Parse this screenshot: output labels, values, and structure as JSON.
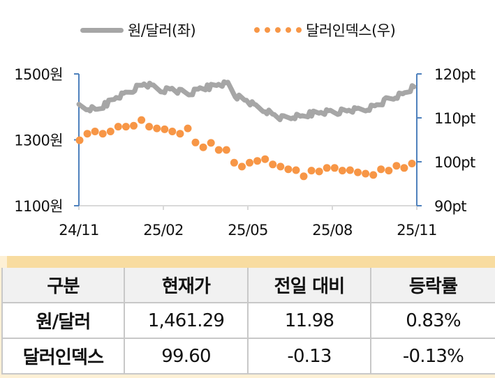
{
  "legend": {
    "series1_label": "원/달러(좌)",
    "series2_label": "달러인덱스(우)"
  },
  "axes": {
    "left_ticks": [
      "1500원",
      "1300원",
      "1100원"
    ],
    "right_ticks": [
      "120pt",
      "110pt",
      "100pt",
      "90pt"
    ],
    "x_ticks": [
      "24/11",
      "25/02",
      "25/05",
      "25/08",
      "25/11"
    ]
  },
  "colors": {
    "krw_usd_line": "#a6a6a6",
    "dollar_index_dots": "#f79646",
    "axis": "#4f81bd",
    "x_axis": "#d9d9d9",
    "table_header_bg": "#f1f1f1",
    "table_topbar": "#f8dca0",
    "table_side": "#fdf0d5"
  },
  "table": {
    "headers": [
      "구분",
      "현재가",
      "전일 대비",
      "등락률"
    ],
    "rows": [
      [
        "원/달러",
        "1,461.29",
        "11.98",
        "0.83%"
      ],
      [
        "달러인덱스",
        "99.60",
        "-0.13",
        "-0.13%"
      ]
    ]
  },
  "chart_data": {
    "type": "line",
    "title": "",
    "xlabel": "",
    "ylabel": "원/달러 (좌), 달러인덱스 (우)",
    "x_ticks": [
      "24/11",
      "25/02",
      "25/05",
      "25/08",
      "25/11"
    ],
    "grid": false,
    "legend_position": "top",
    "y_left": {
      "label": "원/달러",
      "range": [
        1100,
        1500
      ],
      "ticks": [
        1100,
        1300,
        1500
      ],
      "unit": "원"
    },
    "y_right": {
      "label": "달러인덱스",
      "range": [
        90,
        120
      ],
      "ticks": [
        90,
        100,
        110,
        120
      ],
      "unit": "pt"
    },
    "series": [
      {
        "name": "원/달러(좌)",
        "axis": "left",
        "style": "line",
        "x": [
          "24/11",
          "24/11",
          "24/12",
          "24/12",
          "24/12",
          "25/01",
          "25/01",
          "25/01",
          "25/02",
          "25/02",
          "25/02",
          "25/03",
          "25/03",
          "25/03",
          "25/04",
          "25/04",
          "25/04",
          "25/05",
          "25/05",
          "25/05",
          "25/06",
          "25/06",
          "25/06",
          "25/07",
          "25/07",
          "25/07",
          "25/08",
          "25/08",
          "25/08",
          "25/09",
          "25/09",
          "25/09",
          "25/10",
          "25/10",
          "25/10",
          "25/11",
          "25/11"
        ],
        "values": [
          1400,
          1395,
          1390,
          1410,
          1430,
          1440,
          1455,
          1470,
          1460,
          1450,
          1455,
          1445,
          1440,
          1455,
          1460,
          1470,
          1470,
          1430,
          1420,
          1400,
          1390,
          1375,
          1365,
          1370,
          1370,
          1380,
          1385,
          1385,
          1385,
          1390,
          1390,
          1395,
          1405,
          1420,
          1430,
          1440,
          1461
        ]
      },
      {
        "name": "달러인덱스(우)",
        "axis": "right",
        "style": "dots",
        "values": [
          104.9,
          106.4,
          106.9,
          106.4,
          106.9,
          108.0,
          108.0,
          108.2,
          109.5,
          108.0,
          107.6,
          107.4,
          106.9,
          106.4,
          107.6,
          104.4,
          103.3,
          104.3,
          102.7,
          102.7,
          99.8,
          98.9,
          99.8,
          100.2,
          100.6,
          99.4,
          98.9,
          98.3,
          98.1,
          96.7,
          98.0,
          97.8,
          98.6,
          98.6,
          98.0,
          98.1,
          97.6,
          97.3,
          97.0,
          98.3,
          98.0,
          99.1,
          98.6,
          99.6
        ]
      }
    ]
  }
}
